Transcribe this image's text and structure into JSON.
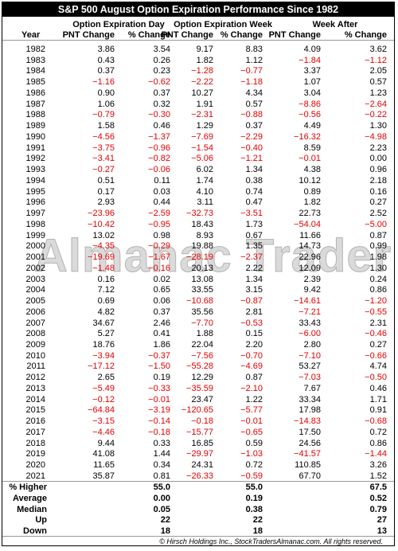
{
  "title": "S&P 500 August Option Expiration Performance Since 1982",
  "header": {
    "groups": [
      "Option Expiration Day",
      "Option Expiration Week",
      "Week After"
    ],
    "columns": [
      "Year",
      "PNT Change",
      "% Change",
      "PNT Change",
      "% Change",
      "PNT Change",
      "% Change"
    ]
  },
  "table": {
    "rows": [
      [
        "1982",
        "3.86",
        "3.54",
        "9.17",
        "8.83",
        "4.09",
        "3.62"
      ],
      [
        "1983",
        "0.43",
        "0.26",
        "1.82",
        "1.12",
        "−1.84",
        "−1.12"
      ],
      [
        "1984",
        "0.37",
        "0.23",
        "−1.28",
        "−0.77",
        "3.37",
        "2.05"
      ],
      [
        "1985",
        "−1.16",
        "−0.62",
        "−2.22",
        "−1.18",
        "1.07",
        "0.57"
      ],
      [
        "1986",
        "0.90",
        "0.37",
        "10.27",
        "4.34",
        "3.04",
        "1.23"
      ],
      [
        "1987",
        "1.06",
        "0.32",
        "1.91",
        "0.57",
        "−8.86",
        "−2.64"
      ],
      [
        "1988",
        "−0.79",
        "−0.30",
        "−2.31",
        "−0.88",
        "−0.56",
        "−0.22"
      ],
      [
        "1989",
        "1.58",
        "0.46",
        "1.29",
        "0.37",
        "4.49",
        "1.30"
      ],
      [
        "1990",
        "−4.56",
        "−1.37",
        "−7.69",
        "−2.29",
        "−16.32",
        "−4.98"
      ],
      [
        "1991",
        "−3.75",
        "−0.96",
        "−1.54",
        "−0.40",
        "8.59",
        "2.23"
      ],
      [
        "1992",
        "−3.41",
        "−0.82",
        "−5.06",
        "−1.21",
        "−0.01",
        "0.00"
      ],
      [
        "1993",
        "−0.27",
        "−0.06",
        "6.02",
        "1.34",
        "4.38",
        "0.96"
      ],
      [
        "1994",
        "0.51",
        "0.11",
        "1.74",
        "0.38",
        "10.12",
        "2.18"
      ],
      [
        "1995",
        "0.17",
        "0.03",
        "4.10",
        "0.74",
        "0.89",
        "0.16"
      ],
      [
        "1996",
        "2.93",
        "0.44",
        "3.11",
        "0.47",
        "1.82",
        "0.27"
      ],
      [
        "1997",
        "−23.96",
        "−2.59",
        "−32.73",
        "−3.51",
        "22.73",
        "2.52"
      ],
      [
        "1998",
        "−10.42",
        "−0.95",
        "18.43",
        "1.73",
        "−54.04",
        "−5.00"
      ],
      [
        "1999",
        "13.02",
        "0.98",
        "8.93",
        "0.67",
        "11.66",
        "0.87"
      ],
      [
        "2000",
        "−4.35",
        "−0.29",
        "19.88",
        "1.35",
        "14.73",
        "0.99"
      ],
      [
        "2001",
        "−19.69",
        "−1.67",
        "−28.19",
        "−2.37",
        "22.96",
        "1.98"
      ],
      [
        "2002",
        "−1.48",
        "−0.16",
        "20.13",
        "2.22",
        "12.09",
        "1.30"
      ],
      [
        "2003",
        "0.16",
        "0.02",
        "13.08",
        "1.34",
        "2.39",
        "0.24"
      ],
      [
        "2004",
        "7.12",
        "0.65",
        "33.55",
        "3.15",
        "9.42",
        "0.86"
      ],
      [
        "2005",
        "0.69",
        "0.06",
        "−10.68",
        "−0.87",
        "−14.61",
        "−1.20"
      ],
      [
        "2006",
        "4.82",
        "0.37",
        "35.56",
        "2.81",
        "−7.21",
        "−0.55"
      ],
      [
        "2007",
        "34.67",
        "2.46",
        "−7.70",
        "−0.53",
        "33.43",
        "2.31"
      ],
      [
        "2008",
        "5.27",
        "0.41",
        "1.88",
        "0.15",
        "−6.00",
        "−0.46"
      ],
      [
        "2009",
        "18.76",
        "1.86",
        "22.04",
        "2.20",
        "2.80",
        "0.27"
      ],
      [
        "2010",
        "−3.94",
        "−0.37",
        "−7.56",
        "−0.70",
        "−7.10",
        "−0.66"
      ],
      [
        "2011",
        "−17.12",
        "−1.50",
        "−55.28",
        "−4.69",
        "53.27",
        "4.74"
      ],
      [
        "2012",
        "2.65",
        "0.19",
        "12.29",
        "0.87",
        "−7.03",
        "−0.50"
      ],
      [
        "2013",
        "−5.49",
        "−0.33",
        "−35.59",
        "−2.10",
        "7.67",
        "0.46"
      ],
      [
        "2014",
        "−0.12",
        "−0.01",
        "23.47",
        "1.22",
        "33.34",
        "1.71"
      ],
      [
        "2015",
        "−64.84",
        "−3.19",
        "−120.65",
        "−5.77",
        "17.98",
        "0.91"
      ],
      [
        "2016",
        "−3.15",
        "−0.14",
        "−0.18",
        "−0.01",
        "−14.83",
        "−0.68"
      ],
      [
        "2017",
        "−4.46",
        "−0.18",
        "−15.77",
        "−0.65",
        "17.50",
        "0.72"
      ],
      [
        "2018",
        "9.44",
        "0.33",
        "16.85",
        "0.59",
        "24.56",
        "0.86"
      ],
      [
        "2019",
        "41.08",
        "1.44",
        "−29.97",
        "−1.03",
        "−41.57",
        "−1.44"
      ],
      [
        "2020",
        "11.65",
        "0.34",
        "24.31",
        "0.72",
        "110.85",
        "3.26"
      ],
      [
        "2021",
        "35.87",
        "0.81",
        "−26.33",
        "−0.59",
        "67.70",
        "1.52"
      ]
    ]
  },
  "summary": {
    "rows": [
      [
        "% Higher",
        "55.0",
        "55.0",
        "67.5"
      ],
      [
        "Average",
        "0.00",
        "0.19",
        "0.52"
      ],
      [
        "Median",
        "0.05",
        "0.38",
        "0.79"
      ],
      [
        "Up",
        "22",
        "22",
        "27"
      ],
      [
        "Down",
        "18",
        "18",
        "13"
      ]
    ]
  },
  "watermark": "Almanac Trader",
  "footer": "© Hirsch Holdings Inc., StockTradersAlmanac.com. All rights reserved."
}
